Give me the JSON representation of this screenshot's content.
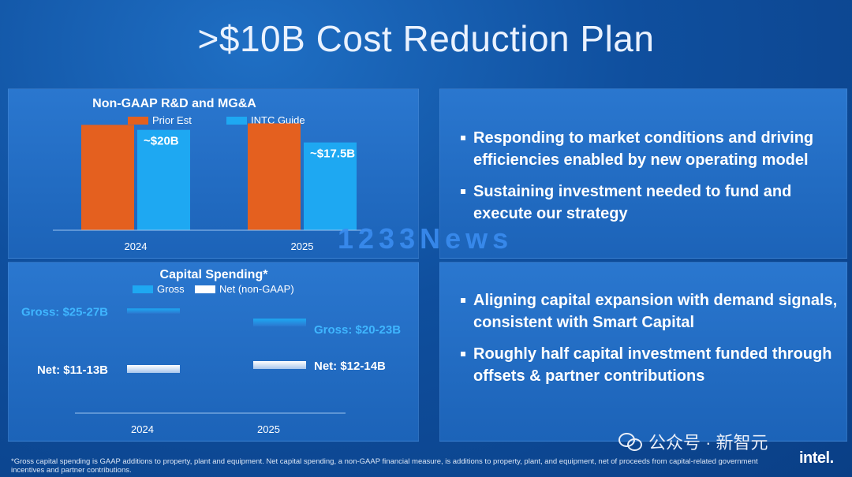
{
  "slide": {
    "title": ">$10B Cost Reduction Plan",
    "watermark": "1233News",
    "wechat_label": "公众号 · 新智元",
    "footnote": "*Gross capital spending is GAAP additions to property, plant and equipment. Net capital spending, a non-GAAP financial measure, is additions to property, plant, and equipment, net of proceeds from capital-related government incentives and partner contributions.",
    "logo": "intel."
  },
  "bullets_top": [
    "Responding to market conditions and driving efficiencies enabled by new operating model",
    "Sustaining investment needed to fund and execute our strategy"
  ],
  "bullets_bottom": [
    "Aligning capital expansion with demand signals, consistent with Smart Capital",
    "Roughly half capital investment funded through offsets & partner contributions"
  ],
  "colors": {
    "prior_est": "#e4601f",
    "intc_guide": "#1ea8f2",
    "net": "#ffffff",
    "gross_label": "#3fb6ff"
  },
  "chart_data": [
    {
      "type": "bar",
      "title": "Non-GAAP R&D and MG&A",
      "categories": [
        "2024",
        "2025"
      ],
      "series": [
        {
          "name": "Prior Est",
          "values": [
            21.0,
            21.3
          ]
        },
        {
          "name": "INTC Guide",
          "values": [
            20.0,
            17.5
          ]
        }
      ],
      "data_labels": [
        "~$20B",
        "~$17.5B"
      ],
      "ylim": [
        0,
        22
      ]
    },
    {
      "type": "bar",
      "title": "Capital Spending*",
      "categories": [
        "2024",
        "2025"
      ],
      "series": [
        {
          "name": "Gross",
          "ranges": [
            [
              25,
              27
            ],
            [
              20,
              23
            ]
          ],
          "labels": [
            "Gross: $25-27B",
            "Gross: $20-23B"
          ]
        },
        {
          "name": "Net (non-GAAP)",
          "ranges": [
            [
              11,
              13
            ],
            [
              12,
              14
            ]
          ],
          "labels": [
            "Net: $11-13B",
            "Net: $12-14B"
          ]
        }
      ],
      "ylim": [
        0,
        30
      ]
    }
  ]
}
